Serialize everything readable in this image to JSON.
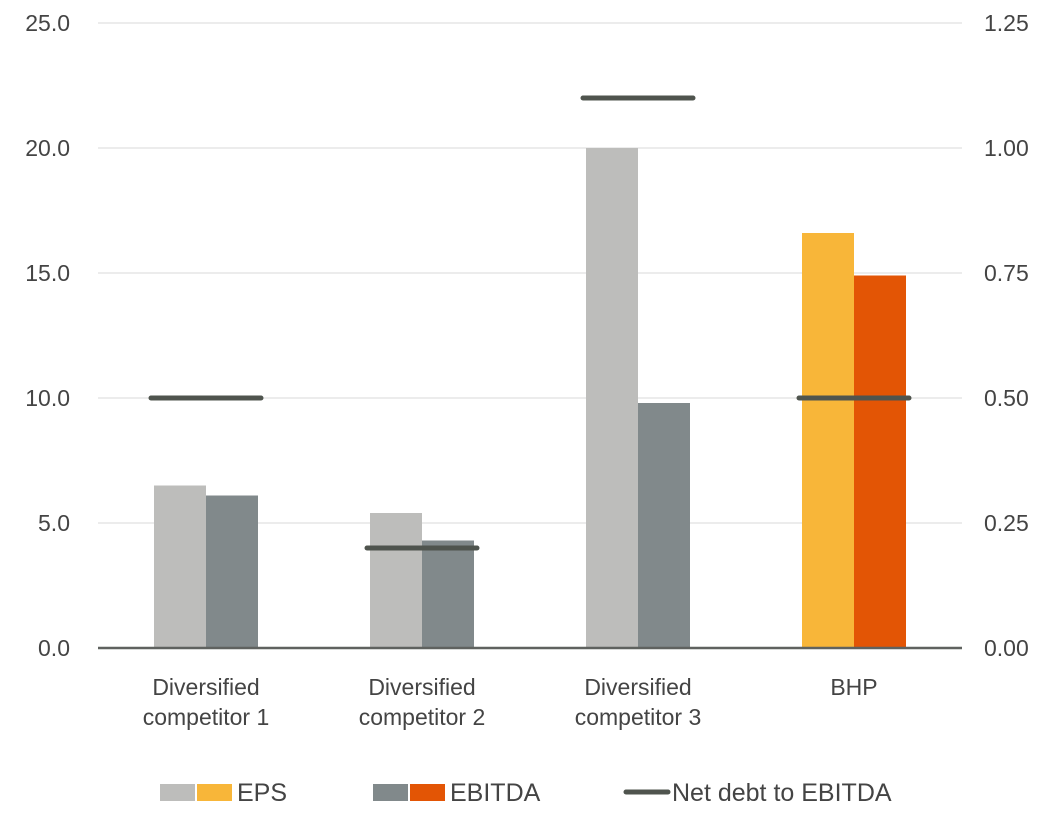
{
  "chart_data": {
    "type": "bar",
    "title": "",
    "categories": [
      [
        "Diversified",
        "competitor 1"
      ],
      [
        "Diversified",
        "competitor 2"
      ],
      [
        "Diversified",
        "competitor 3"
      ],
      [
        "BHP"
      ]
    ],
    "series": [
      {
        "name": "EPS",
        "axis": "left",
        "values": [
          6.5,
          5.4,
          20.0,
          16.6
        ],
        "colors": [
          "#bdbdbb",
          "#bdbdbb",
          "#bdbdbb",
          "#f8b639"
        ]
      },
      {
        "name": "EBITDA",
        "axis": "left",
        "values": [
          6.1,
          4.3,
          9.8,
          14.9
        ],
        "colors": [
          "#81898b",
          "#81898b",
          "#81898b",
          "#e35505"
        ]
      },
      {
        "name": "Net debt to EBITDA",
        "axis": "right",
        "type": "marker-line",
        "values": [
          0.5,
          0.2,
          1.1,
          0.5
        ],
        "color": "#4f544e"
      }
    ],
    "y_left": {
      "min": 0,
      "max": 25,
      "step": 5,
      "tick_labels": [
        "0.0",
        "5.0",
        "10.0",
        "15.0",
        "20.0",
        "25.0"
      ]
    },
    "y_right": {
      "min": 0,
      "max": 1.25,
      "step": 0.25,
      "tick_labels": [
        "0.00",
        "0.25",
        "0.50",
        "0.75",
        "1.00",
        "1.25"
      ]
    },
    "grid": true,
    "legend": {
      "position": "bottom",
      "items": [
        {
          "label": "EPS",
          "swatches": [
            "#bdbdbb",
            "#f8b639"
          ]
        },
        {
          "label": "EBITDA",
          "swatches": [
            "#81898b",
            "#e35505"
          ]
        },
        {
          "label": "Net debt to EBITDA",
          "line": "#4f544e"
        }
      ]
    },
    "colors": {
      "grid": "#d9d9d9",
      "axis": "#5f625f",
      "text": "#444444"
    }
  }
}
